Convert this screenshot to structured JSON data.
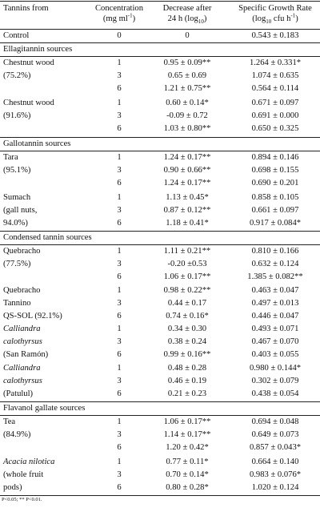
{
  "header": {
    "col0": "Tannins from",
    "col1_a": "Concentration",
    "col1_b": "(mg ml",
    "col1_b_sup": "-1",
    "col1_b_end": ")",
    "col2_a": "Decrease after",
    "col2_b": "24 h (log",
    "col2_b_sub": "10",
    "col2_b_end": ")",
    "col3_a": "Specific Growth Rate",
    "col3_b": "(log",
    "col3_b_sub": "10",
    "col3_b_mid": " cfu h",
    "col3_b_sup": "-1",
    "col3_b_end": ")"
  },
  "control": {
    "name": "Control",
    "conc": "0",
    "decrease": "0",
    "rate": "0.543 ± 0.183"
  },
  "sections": {
    "ellag": "Ellagitannin sources",
    "gallo": "Gallotannin sources",
    "cond": "Condensed tannin sources",
    "flav": "Flavanol gallate sources"
  },
  "rows": [
    {
      "name": "Chestnut wood",
      "conc": "1",
      "decrease": "0.95 ± 0.09**",
      "rate": "1.264 ± 0.331*"
    },
    {
      "name": "(75.2%)",
      "conc": "3",
      "decrease": "0.65 ± 0.69",
      "rate": "1.074 ± 0.635"
    },
    {
      "name": "",
      "conc": "6",
      "decrease": "1.21 ± 0.75**",
      "rate": "0.564 ± 0.114"
    },
    {
      "name": "Chestnut wood",
      "conc": "1",
      "decrease": "0.60 ± 0.14*",
      "rate": "0.671 ± 0.097"
    },
    {
      "name": "(91.6%)",
      "conc": "3",
      "decrease": "-0.09 ± 0.72",
      "rate": "0.691 ± 0.000"
    },
    {
      "name": "",
      "conc": "6",
      "decrease": "1.03 ± 0.80**",
      "rate": "0.650 ± 0.325"
    },
    {
      "name": "Tara",
      "conc": "1",
      "decrease": "1.24 ± 0.17**",
      "rate": "0.894 ± 0.146"
    },
    {
      "name": "(95.1%)",
      "conc": "3",
      "decrease": "0.90 ± 0.66**",
      "rate": "0.698 ± 0.155"
    },
    {
      "name": "",
      "conc": "6",
      "decrease": "1.24 ± 0.17**",
      "rate": "0.690 ± 0.201"
    },
    {
      "name": "Sumach",
      "conc": "1",
      "decrease": "1.13 ± 0.45*",
      "rate": "0.858 ± 0.105"
    },
    {
      "name": "(gall nuts,",
      "conc": "3",
      "decrease": "0.87 ± 0.12**",
      "rate": "0.661 ± 0.097"
    },
    {
      "name": "94.0%)",
      "conc": "6",
      "decrease": "1.18 ± 0.41*",
      "rate": "0.917 ± 0.084*"
    },
    {
      "name": "Quebracho",
      "conc": "1",
      "decrease": "1.11 ± 0.21**",
      "rate": "0.810 ± 0.166"
    },
    {
      "name": "(77.5%)",
      "conc": "3",
      "decrease": "-0.20 ±0.53",
      "rate": "0.632 ± 0.124"
    },
    {
      "name": "",
      "conc": "6",
      "decrease": "1.06 ± 0.17**",
      "rate": "1.385 ± 0.082**"
    },
    {
      "name": "Quebracho",
      "conc": "1",
      "decrease": "0.98 ± 0.22**",
      "rate": "0.463 ± 0.047"
    },
    {
      "name": "Tannino",
      "conc": "3",
      "decrease": "0.44 ± 0.17",
      "rate": "0.497 ± 0.013"
    },
    {
      "name": "QS-SOL (92.1%)",
      "conc": "6",
      "decrease": "0.74 ± 0.16*",
      "rate": "0.446 ± 0.047"
    },
    {
      "name": "Calliandra",
      "conc": "1",
      "decrease": "0.34 ± 0.30",
      "rate": "0.493 ± 0.071"
    },
    {
      "name": "calothyrsus",
      "conc": "3",
      "decrease": "0.38 ± 0.24",
      "rate": "0.467 ± 0.070"
    },
    {
      "name": "(San Ramón)",
      "conc": "6",
      "decrease": "0.99 ± 0.16**",
      "rate": "0.403 ± 0.055"
    },
    {
      "name": "Calliandra",
      "conc": "1",
      "decrease": "0.48 ± 0.28",
      "rate": "0.980 ± 0.144*"
    },
    {
      "name": "calothyrsus",
      "conc": "3",
      "decrease": "0.46 ± 0.19",
      "rate": "0.302 ± 0.079"
    },
    {
      "name": "(Patulul)",
      "conc": "6",
      "decrease": "0.21 ± 0.23",
      "rate": "0.438 ± 0.054"
    },
    {
      "name": "Tea",
      "conc": "1",
      "decrease": "1.06 ± 0.17**",
      "rate": "0.694 ± 0.048"
    },
    {
      "name": "(84.9%)",
      "conc": "3",
      "decrease": "1.14 ± 0.17**",
      "rate": "0.649 ± 0.073"
    },
    {
      "name": "",
      "conc": "6",
      "decrease": "1.20 ± 0.42*",
      "rate": "0.857 ± 0.043*"
    },
    {
      "name": "Acacia nilotica",
      "conc": "1",
      "decrease": "0.77 ± 0.11*",
      "rate": "0.664 ± 0.140"
    },
    {
      "name": "(whole fruit",
      "conc": "3",
      "decrease": "0.70 ± 0.14*",
      "rate": "0.983 ± 0.076*"
    },
    {
      "name": "pods)",
      "conc": "6",
      "decrease": "0.80 ± 0.28*",
      "rate": "1.020 ± 0.124"
    }
  ],
  "footnote": "P<0.05; ** P<0.01."
}
